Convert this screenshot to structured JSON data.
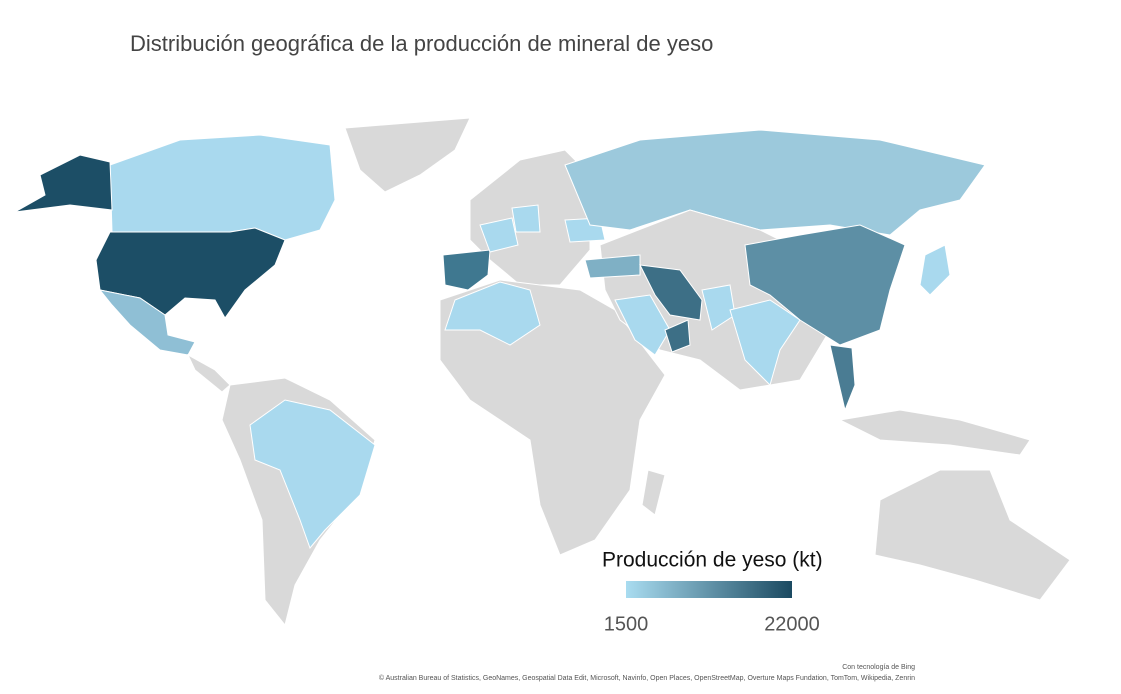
{
  "chart_data": {
    "type": "choropleth",
    "title": "Distribución geográfica de la producción de mineral de yeso",
    "legend": {
      "title": "Producción de yeso (kt)",
      "range": [
        1500,
        22000
      ],
      "colors": [
        "#a9dcf0",
        "#1b4a61"
      ]
    },
    "credit": "Con tecnología de Bing",
    "attribution": "© Australian Bureau of Statistics, GeoNames, Geospatial Data Edit, Microsoft, Navinfo, Open Places, OpenStreetMap, Overture Maps Fundation, TomTom, Wikipedia, Zenrin"
  }
}
